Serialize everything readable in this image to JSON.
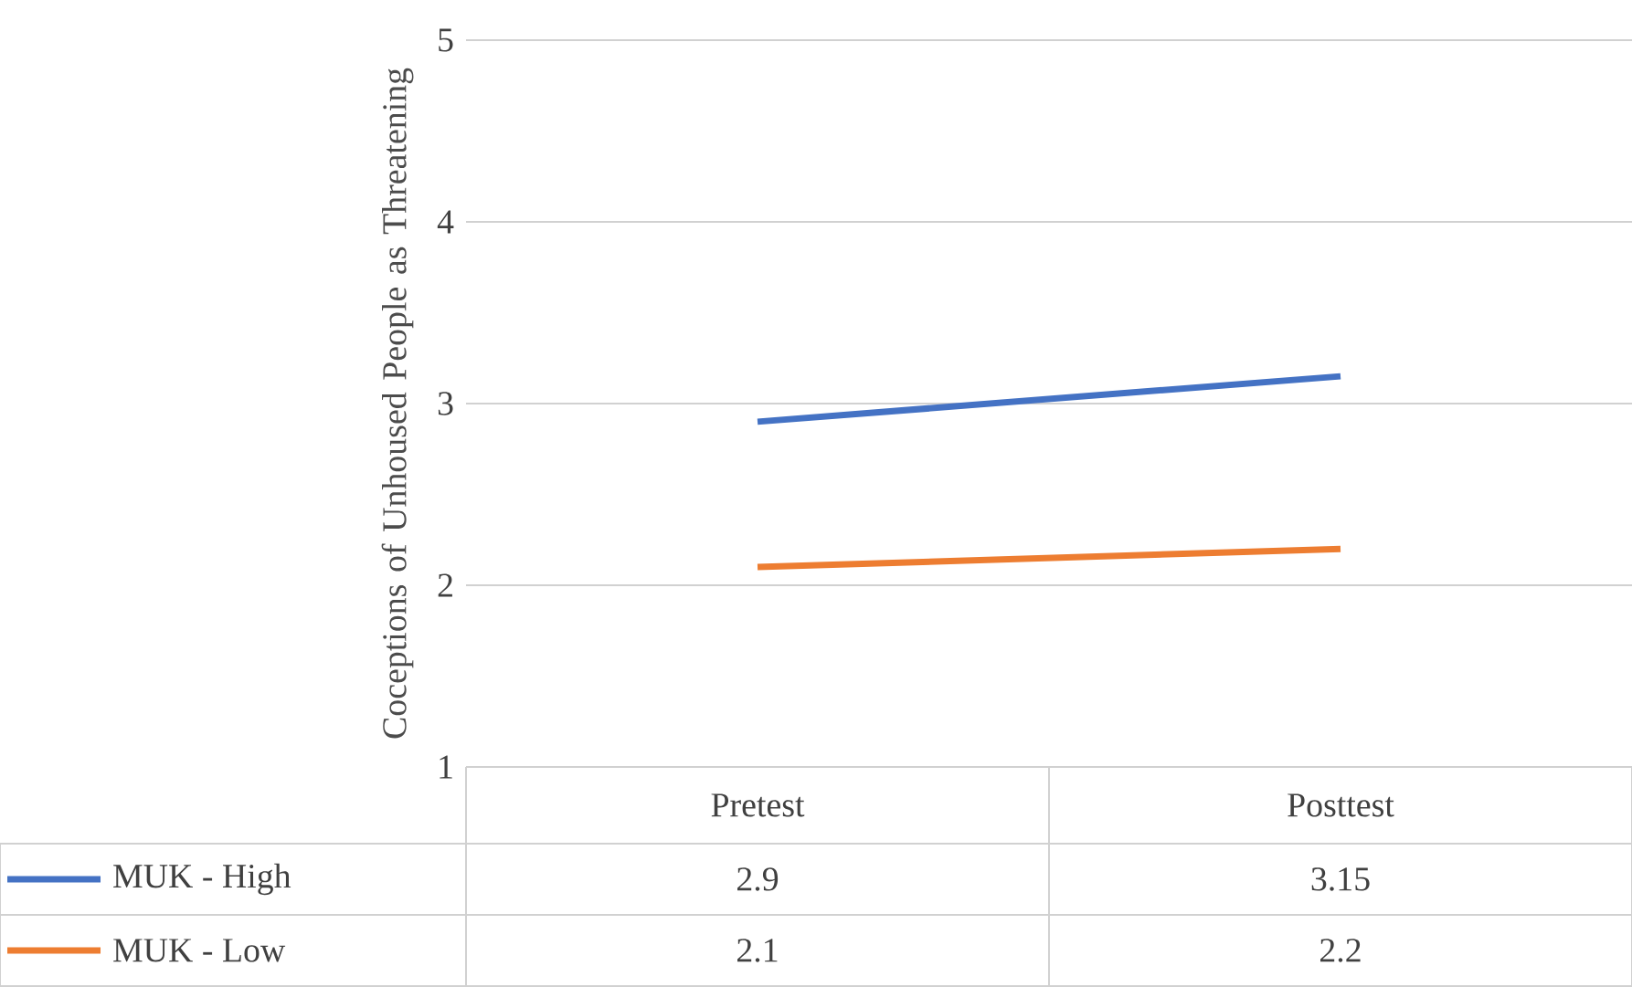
{
  "chart_data": {
    "type": "line",
    "ylabel": "Coceptions of Unhoused People as Threatening",
    "categories": [
      "Pretest",
      "Posttest"
    ],
    "series": [
      {
        "name": "MUK - High",
        "color": "#4472c4",
        "values": [
          2.9,
          3.15
        ]
      },
      {
        "name": "MUK - Low",
        "color": "#ed7d31",
        "values": [
          2.1,
          2.2
        ]
      }
    ],
    "ylim": [
      1,
      5
    ],
    "yticks": [
      1,
      2,
      3,
      4,
      5
    ],
    "grid": "y",
    "legend": "bottom",
    "data_labels": true,
    "marker": "none",
    "line_style": "solid"
  }
}
